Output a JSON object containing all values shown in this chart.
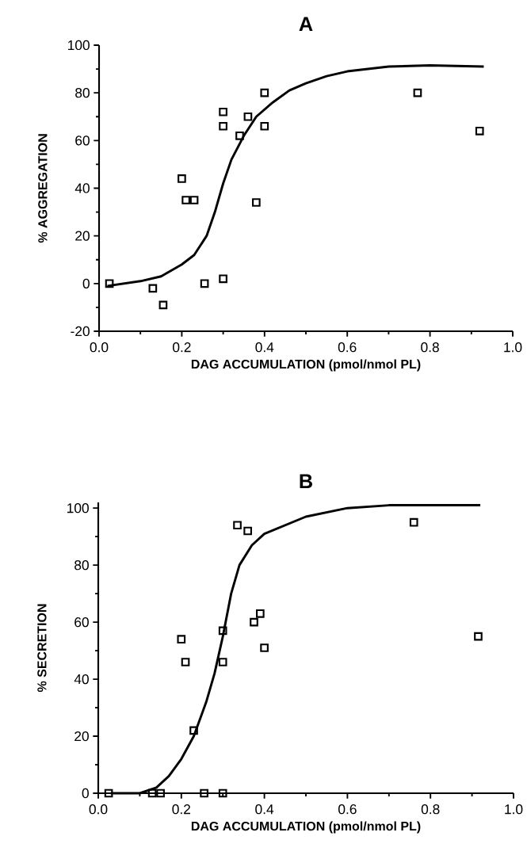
{
  "chart_data": [
    {
      "type": "scatter",
      "title": "A",
      "xlabel": "DAG  ACCUMULATION  (pmol/nmol  PL)",
      "ylabel": "%  AGGREGATION",
      "xlim": [
        0,
        1.0
      ],
      "ylim": [
        -20,
        100
      ],
      "xticks": [
        {
          "value": 0,
          "label": "0.0"
        },
        {
          "value": 0.2,
          "label": "0.2"
        },
        {
          "value": 0.4,
          "label": "0.4"
        },
        {
          "value": 0.6,
          "label": "0.6"
        },
        {
          "value": 0.8,
          "label": "0.8"
        },
        {
          "value": 1.0,
          "label": "1.0"
        }
      ],
      "yticks": [
        -20,
        0,
        20,
        40,
        60,
        80,
        100
      ],
      "series": [
        {
          "marker": "square",
          "color": "#000000",
          "x": [
            0.025,
            0.13,
            0.155,
            0.2,
            0.21,
            0.23,
            0.255,
            0.3,
            0.3,
            0.3,
            0.34,
            0.36,
            0.38,
            0.4,
            0.4,
            0.77,
            0.92
          ],
          "values": [
            0,
            -2,
            -9,
            44,
            35,
            35,
            0,
            2,
            72,
            66,
            62,
            70,
            34,
            80,
            66,
            80,
            64
          ]
        },
        {
          "type": "line",
          "line_style": "solid",
          "color": "#000000",
          "x": [
            0.02,
            0.06,
            0.1,
            0.15,
            0.2,
            0.23,
            0.26,
            0.28,
            0.3,
            0.32,
            0.35,
            0.38,
            0.42,
            0.46,
            0.5,
            0.55,
            0.6,
            0.7,
            0.8,
            0.93
          ],
          "values": [
            -1,
            0,
            1,
            3,
            8,
            12,
            20,
            30,
            42,
            52,
            62,
            70,
            76,
            81,
            84,
            87,
            89,
            91,
            91.5,
            91
          ]
        }
      ]
    },
    {
      "type": "scatter",
      "title": "B",
      "xlabel": "DAG  ACCUMULATION  (pmol/nmol  PL)",
      "ylabel": "%  SECRETION",
      "xlim": [
        0,
        1.0
      ],
      "ylim": [
        0,
        102
      ],
      "xticks": [
        {
          "value": 0,
          "label": "0.0"
        },
        {
          "value": 0.2,
          "label": "0.2"
        },
        {
          "value": 0.4,
          "label": "0.4"
        },
        {
          "value": 0.6,
          "label": "0.6"
        },
        {
          "value": 0.8,
          "label": "0.8"
        },
        {
          "value": 1.0,
          "label": "1.0"
        }
      ],
      "yticks": [
        0,
        20,
        40,
        60,
        80,
        100
      ],
      "series": [
        {
          "marker": "square",
          "color": "#000000",
          "x": [
            0.025,
            0.13,
            0.15,
            0.2,
            0.21,
            0.23,
            0.255,
            0.3,
            0.3,
            0.3,
            0.335,
            0.36,
            0.375,
            0.39,
            0.4,
            0.76,
            0.915
          ],
          "values": [
            0,
            0,
            0,
            54,
            46,
            22,
            0,
            0,
            57,
            46,
            94,
            92,
            60,
            63,
            51,
            95,
            55
          ]
        },
        {
          "type": "line",
          "line_style": "solid",
          "color": "#000000",
          "x": [
            0.03,
            0.1,
            0.14,
            0.17,
            0.2,
            0.23,
            0.26,
            0.28,
            0.3,
            0.32,
            0.34,
            0.37,
            0.4,
            0.45,
            0.5,
            0.6,
            0.7,
            0.8,
            0.92
          ],
          "values": [
            0,
            0,
            2,
            6,
            12,
            20,
            32,
            42,
            55,
            70,
            80,
            87,
            91,
            94,
            97,
            100,
            101,
            101,
            101
          ]
        }
      ]
    }
  ]
}
